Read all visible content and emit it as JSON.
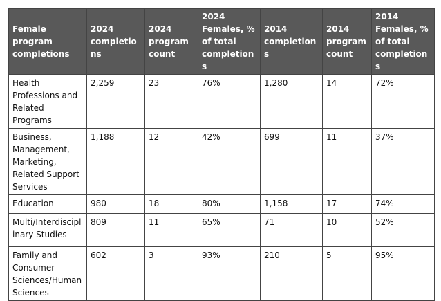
{
  "table": {
    "headers": [
      "Female program completions",
      "2024 completions",
      "2024 program count",
      "2024 Females, % of total completions",
      "2014 completions",
      "2014 program count",
      "2014 Females, % of total completions"
    ],
    "rows": [
      [
        "Health Professions and Related Programs",
        "2,259",
        "23",
        "76%",
        "1,280",
        "14",
        "72%"
      ],
      [
        "Business, Management, Marketing, Related Support Services",
        "1,188",
        "12",
        "42%",
        "699",
        "11",
        "37%"
      ],
      [
        "Education",
        "980",
        "18",
        "80%",
        "1,158",
        "17",
        "74%"
      ],
      [
        "Multi/Interdisciplinary Studies",
        "809",
        "11",
        "65%",
        "71",
        "10",
        "52%"
      ],
      [
        "Family and Consumer Sciences/Human Sciences",
        "602",
        "3",
        "93%",
        "210",
        "5",
        "95%"
      ]
    ]
  }
}
